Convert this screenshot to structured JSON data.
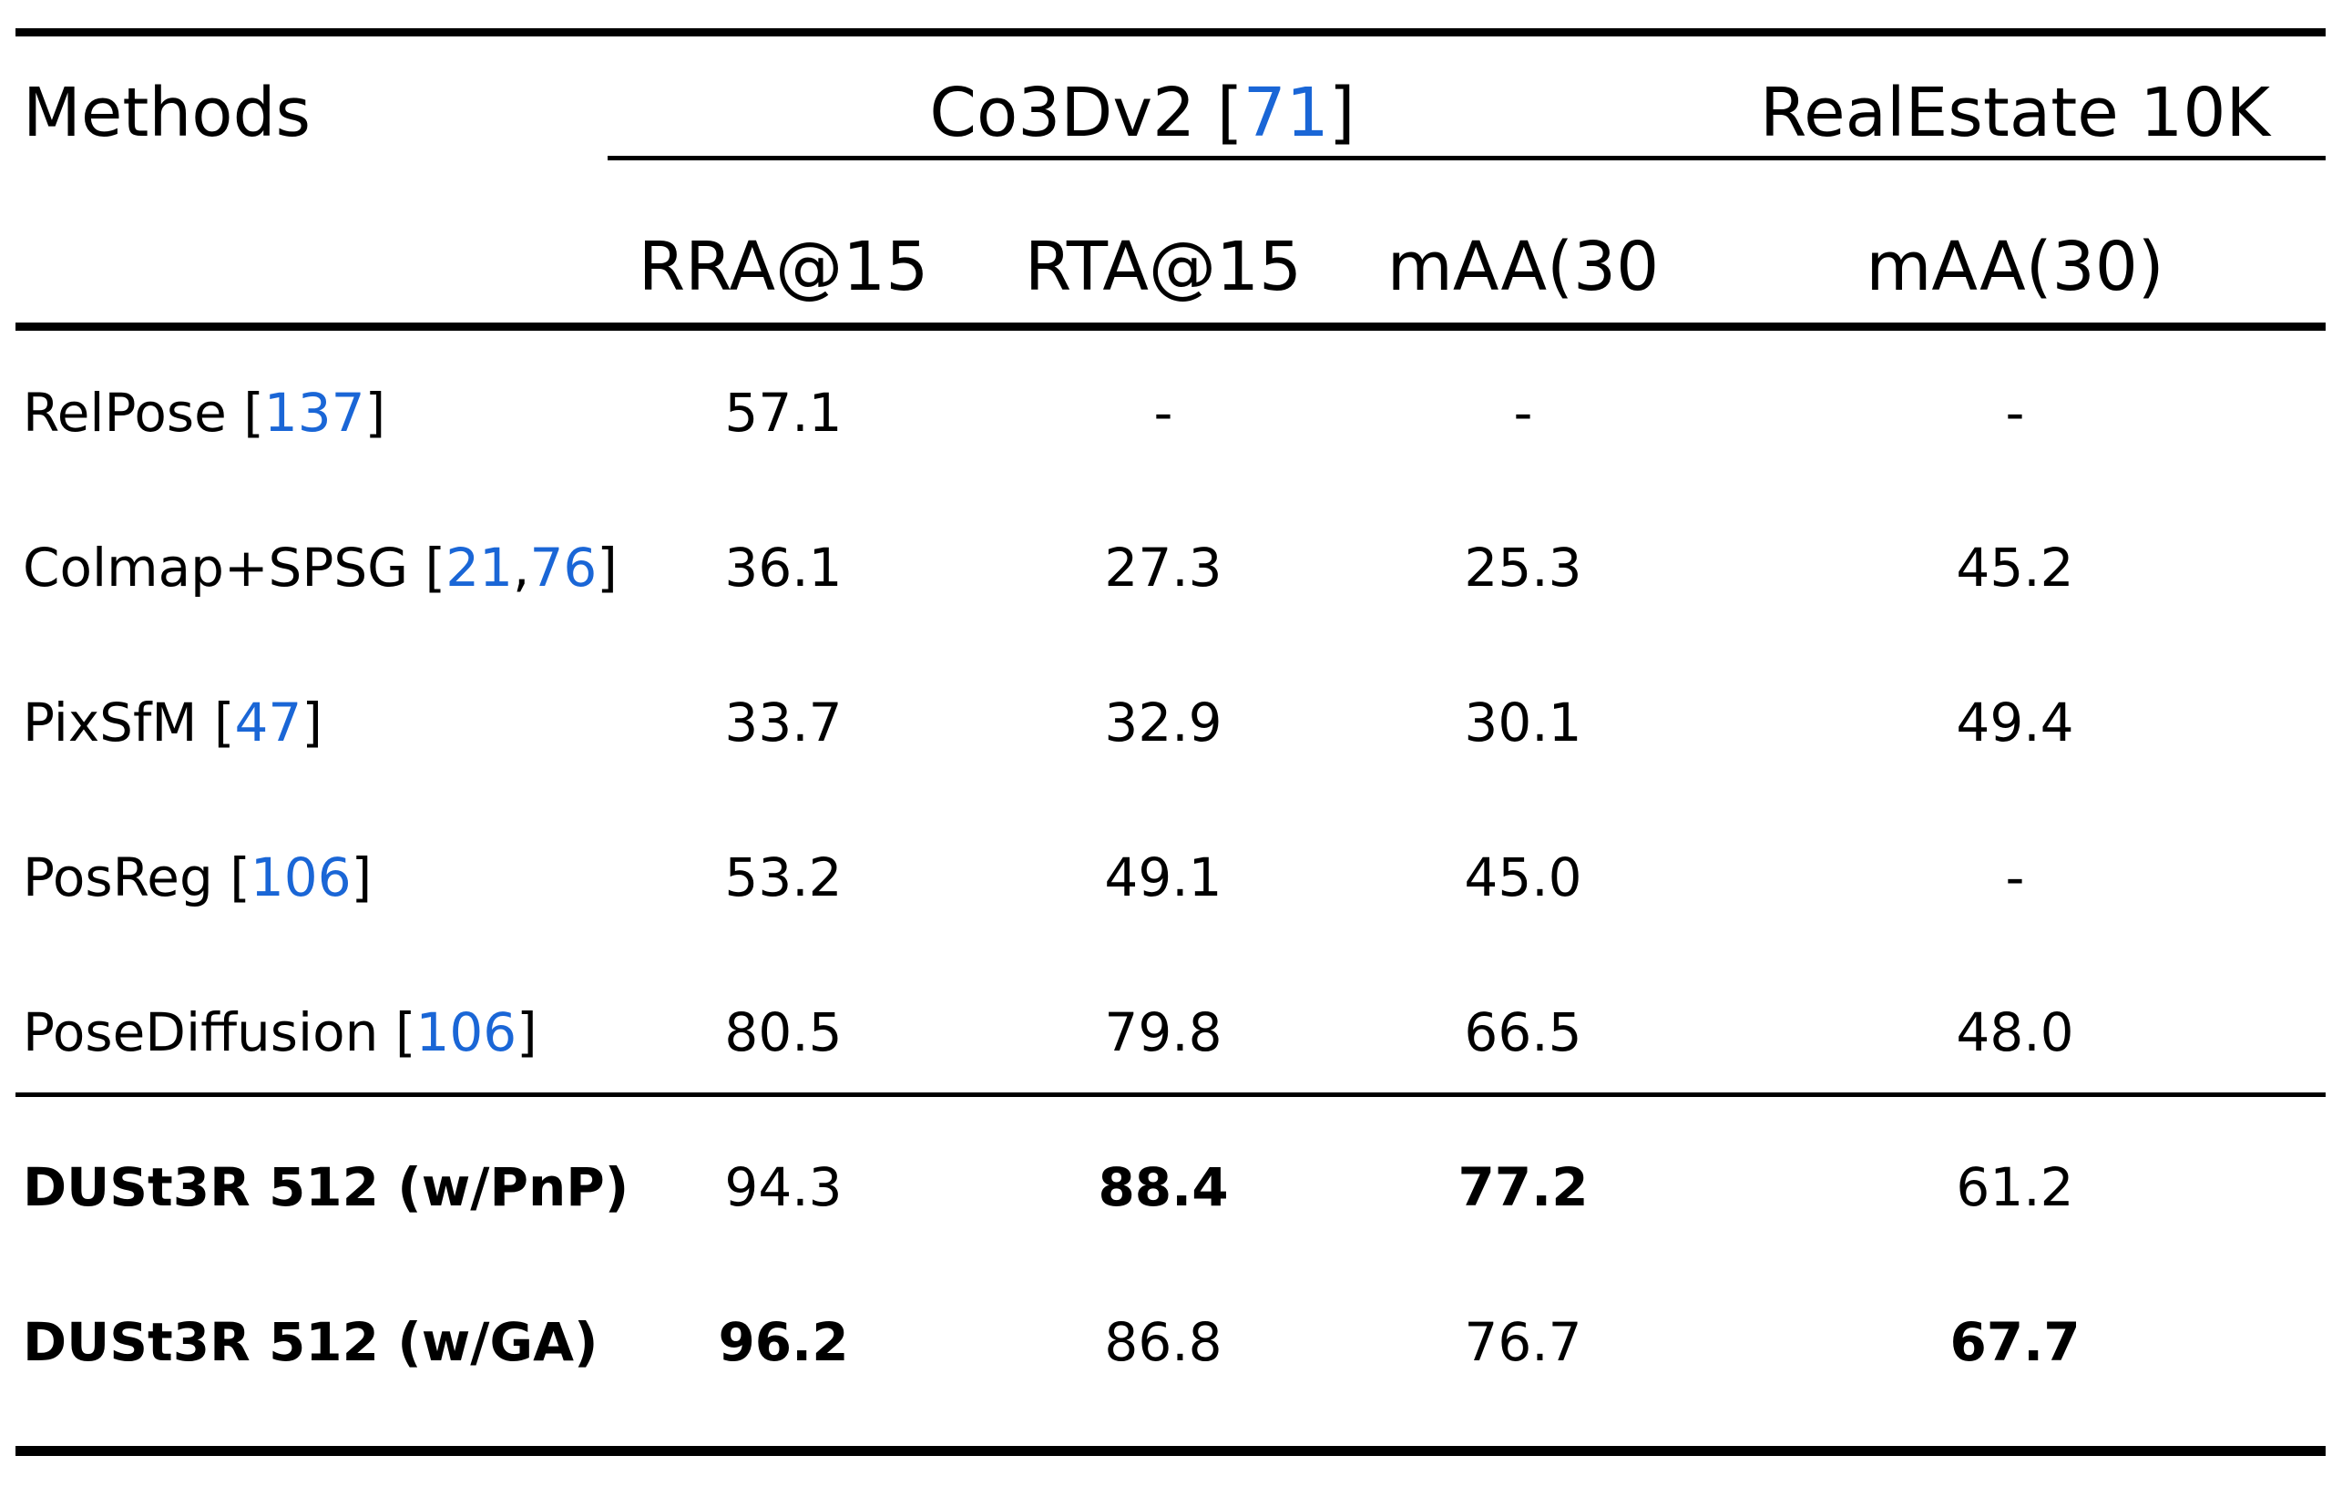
{
  "table": {
    "header": {
      "methods": "Methods",
      "group1": {
        "label": "Co3Dv2 ",
        "lb": "[",
        "cite": "71",
        "rb": "]"
      },
      "group2": {
        "label": "RealEstate 10K"
      },
      "columns": [
        "RRA@15",
        "RTA@15",
        "mAA(30",
        "mAA(30)"
      ]
    },
    "rows": [
      {
        "name": "RelPose ",
        "cites": [
          "137"
        ],
        "values": [
          "57.1",
          "-",
          "-",
          "-"
        ]
      },
      {
        "name": "Colmap+SPSG ",
        "cites": [
          "21",
          "76"
        ],
        "values": [
          "36.1",
          "27.3",
          "25.3",
          "45.2"
        ]
      },
      {
        "name": "PixSfM ",
        "cites": [
          "47"
        ],
        "values": [
          "33.7",
          "32.9",
          "30.1",
          "49.4"
        ]
      },
      {
        "name": "PosReg ",
        "cites": [
          "106"
        ],
        "values": [
          "53.2",
          "49.1",
          "45.0",
          "-"
        ]
      },
      {
        "name": "PoseDiffusion ",
        "cites": [
          "106"
        ],
        "values": [
          "80.5",
          "79.8",
          "66.5",
          "48.0"
        ]
      },
      {
        "name": "DUSt3R 512 (w/PnP)",
        "values": [
          "94.3",
          "88.4",
          "77.2",
          "61.2"
        ]
      },
      {
        "name": "DUSt3R 512 (w/GA)",
        "values": [
          "96.2",
          "86.8",
          "76.7",
          "67.7"
        ]
      }
    ]
  },
  "colors": {
    "citation": "#1a66d6",
    "text": "#000000",
    "rule": "#000000"
  }
}
